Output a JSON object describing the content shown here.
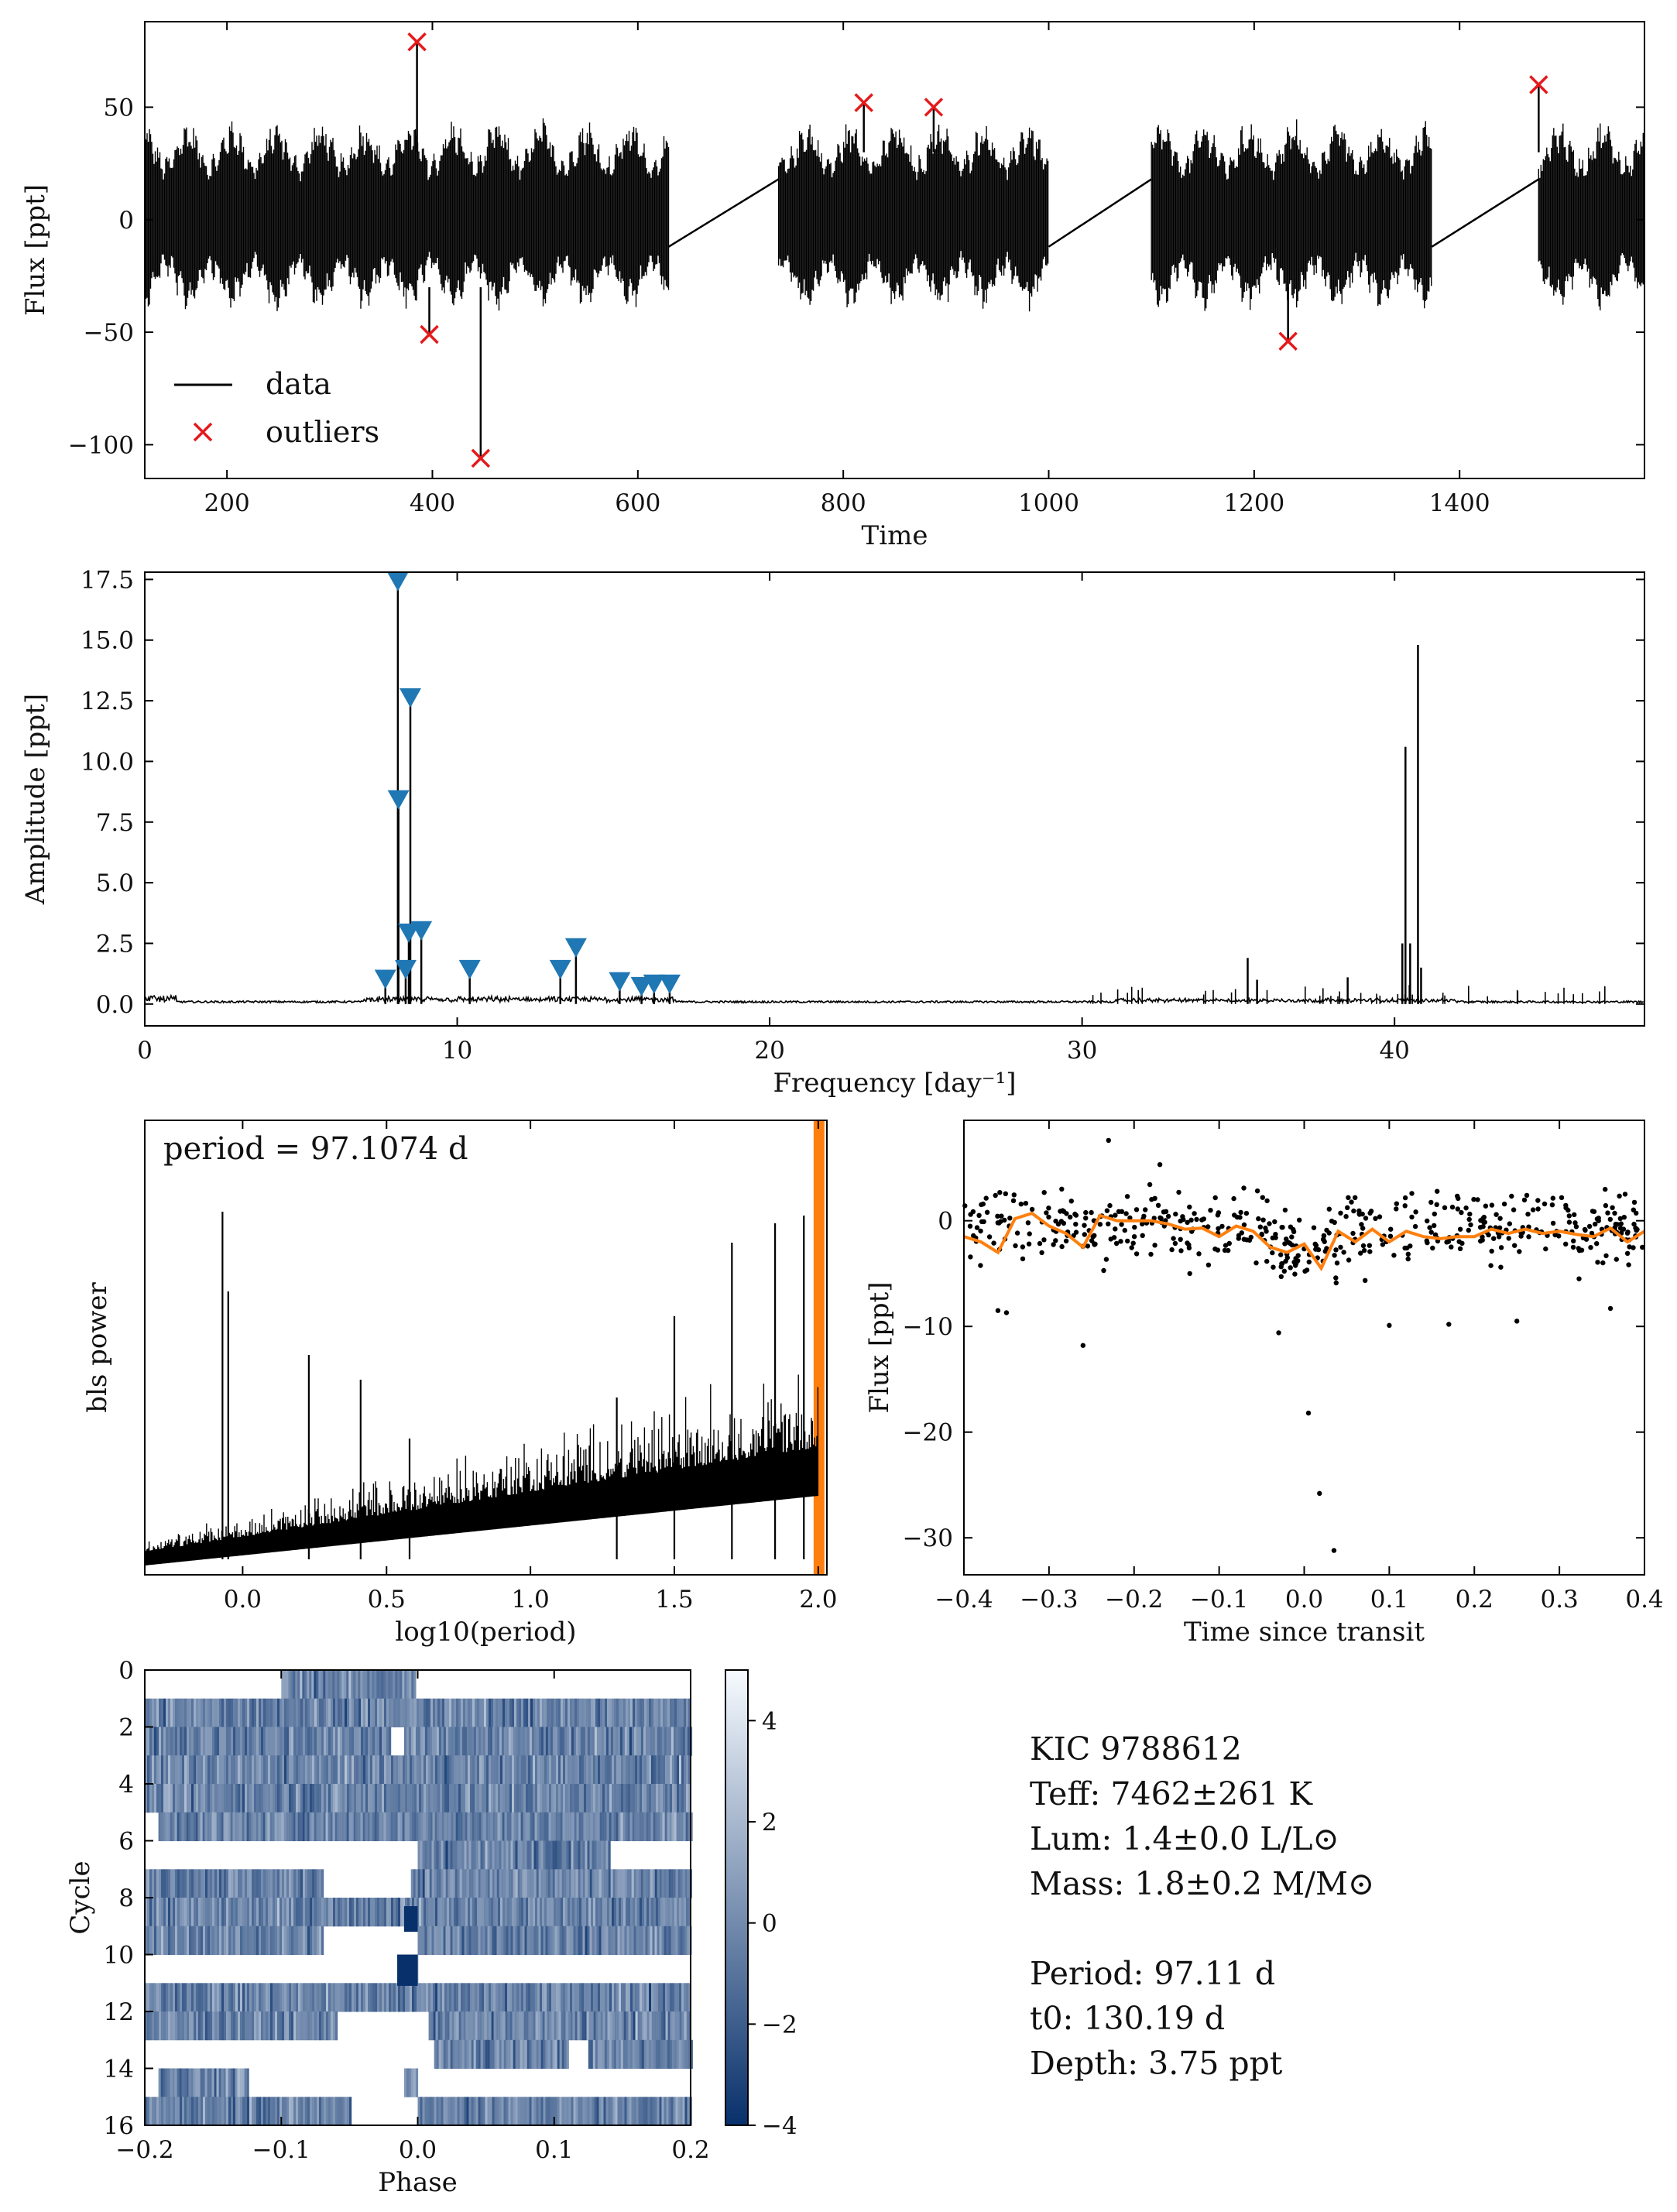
{
  "chart_data": [
    {
      "type": "line",
      "panel": "light-curve",
      "xlabel": "Time",
      "ylabel": "Flux [ppt]",
      "xlim": [
        120,
        1580
      ],
      "ylim": [
        -115,
        88
      ],
      "xticks": [
        200,
        400,
        600,
        800,
        1000,
        1200,
        1400
      ],
      "yticks": [
        -100,
        -50,
        0,
        50
      ],
      "legend": {
        "placement": "lower-left",
        "entries": [
          "data",
          "outliers"
        ]
      },
      "segments": [
        [
          120,
          630
        ],
        [
          737,
          1000
        ],
        [
          1100,
          1373
        ],
        [
          1477,
          1580
        ]
      ],
      "data_envelope": {
        "min": -40,
        "max": 45
      },
      "outliers": [
        {
          "x": 385,
          "y": 79
        },
        {
          "x": 397,
          "y": -51
        },
        {
          "x": 447,
          "y": -106
        },
        {
          "x": 820,
          "y": 52
        },
        {
          "x": 888,
          "y": 50
        },
        {
          "x": 1233,
          "y": -54
        },
        {
          "x": 1477,
          "y": 60
        }
      ],
      "colors": {
        "data": "#000000",
        "outliers": "#e41a1c"
      }
    },
    {
      "type": "line",
      "panel": "amplitude-spectrum",
      "xlabel": "Frequency [day⁻¹]",
      "ylabel": "Amplitude [ppt]",
      "xlim": [
        0,
        48
      ],
      "ylim": [
        -0.9,
        17.8
      ],
      "xticks": [
        0,
        10,
        20,
        30,
        40
      ],
      "yticks": [
        0.0,
        2.5,
        5.0,
        7.5,
        10.0,
        12.5,
        15.0,
        17.5
      ],
      "peaks": [
        {
          "x": 7.7,
          "y": 1.0
        },
        {
          "x": 8.1,
          "y": 17.4
        },
        {
          "x": 8.12,
          "y": 8.4
        },
        {
          "x": 8.35,
          "y": 1.4
        },
        {
          "x": 8.5,
          "y": 12.6
        },
        {
          "x": 8.45,
          "y": 2.9
        },
        {
          "x": 8.85,
          "y": 3.0
        },
        {
          "x": 10.4,
          "y": 1.4
        },
        {
          "x": 13.3,
          "y": 1.4
        },
        {
          "x": 13.8,
          "y": 2.3
        },
        {
          "x": 15.2,
          "y": 0.9
        },
        {
          "x": 15.9,
          "y": 0.7
        },
        {
          "x": 16.3,
          "y": 0.8
        },
        {
          "x": 16.8,
          "y": 0.8
        }
      ],
      "extra_peaks": [
        {
          "x": 35.3,
          "y": 1.9
        },
        {
          "x": 35.6,
          "y": 1.0
        },
        {
          "x": 38.5,
          "y": 1.1
        },
        {
          "x": 40.25,
          "y": 2.5
        },
        {
          "x": 40.35,
          "y": 10.6
        },
        {
          "x": 40.5,
          "y": 2.5
        },
        {
          "x": 40.75,
          "y": 14.8
        },
        {
          "x": 40.85,
          "y": 1.5
        }
      ],
      "markers_color": "#1f77b4"
    },
    {
      "type": "line",
      "panel": "bls-periodogram",
      "xlabel": "log10(period)",
      "ylabel": "bls power",
      "annotation": "period = 97.1074 d",
      "xlim": [
        -0.34,
        2.03
      ],
      "xticks": [
        0.0,
        0.5,
        1.0,
        1.5,
        2.0
      ],
      "highlight_x": 2.0,
      "highlight_color": "#ff7f0e"
    },
    {
      "type": "scatter",
      "panel": "folded-transit",
      "xlabel": "Time since transit",
      "ylabel": "Flux [ppt]",
      "xlim": [
        -0.4,
        0.4
      ],
      "ylim": [
        -33.5,
        9.5
      ],
      "xticks": [
        -0.4,
        -0.3,
        -0.2,
        -0.1,
        0.0,
        0.1,
        0.2,
        0.3,
        0.4
      ],
      "yticks": [
        -30,
        -20,
        -10,
        0
      ],
      "outlier_points": [
        {
          "x": -0.26,
          "y": -11.8
        },
        {
          "x": -0.03,
          "y": -10.6
        },
        {
          "x": 0.005,
          "y": -18.2
        },
        {
          "x": 0.018,
          "y": -25.8
        },
        {
          "x": 0.035,
          "y": -31.2
        },
        {
          "x": -0.23,
          "y": 7.6
        },
        {
          "x": -0.36,
          "y": -8.5
        },
        {
          "x": -0.35,
          "y": -8.7
        },
        {
          "x": 0.25,
          "y": -9.5
        },
        {
          "x": 0.1,
          "y": -9.9
        },
        {
          "x": 0.17,
          "y": -9.8
        },
        {
          "x": 0.36,
          "y": -8.3
        }
      ],
      "binned_curve": [
        [
          -0.4,
          -1.5
        ],
        [
          -0.38,
          -2.0
        ],
        [
          -0.36,
          -3.0
        ],
        [
          -0.34,
          0.2
        ],
        [
          -0.32,
          0.7
        ],
        [
          -0.3,
          -0.5
        ],
        [
          -0.28,
          -1.2
        ],
        [
          -0.26,
          -2.5
        ],
        [
          -0.24,
          0.5
        ],
        [
          -0.22,
          0.0
        ],
        [
          -0.2,
          0.0
        ],
        [
          -0.18,
          0.0
        ],
        [
          -0.16,
          -0.3
        ],
        [
          -0.14,
          -0.8
        ],
        [
          -0.12,
          -0.7
        ],
        [
          -0.1,
          -1.5
        ],
        [
          -0.08,
          -0.5
        ],
        [
          -0.06,
          -1.0
        ],
        [
          -0.04,
          -2.5
        ],
        [
          -0.02,
          -3.0
        ],
        [
          0.0,
          -2.2
        ],
        [
          0.02,
          -4.5
        ],
        [
          0.04,
          -1.0
        ],
        [
          0.06,
          -2.0
        ],
        [
          0.08,
          -0.8
        ],
        [
          0.1,
          -2.0
        ],
        [
          0.12,
          -1.0
        ],
        [
          0.14,
          -1.5
        ],
        [
          0.16,
          -1.7
        ],
        [
          0.18,
          -1.5
        ],
        [
          0.2,
          -1.5
        ],
        [
          0.22,
          -0.8
        ],
        [
          0.24,
          -1.2
        ],
        [
          0.26,
          -0.8
        ],
        [
          0.28,
          -1.2
        ],
        [
          0.3,
          -1.0
        ],
        [
          0.32,
          -1.3
        ],
        [
          0.34,
          -1.5
        ],
        [
          0.36,
          -0.7
        ],
        [
          0.38,
          -2.0
        ],
        [
          0.4,
          -1.0
        ]
      ],
      "curve_color": "#ff7f0e"
    },
    {
      "type": "heatmap",
      "panel": "river-plot",
      "xlabel": "Phase",
      "ylabel": "Cycle",
      "xlim": [
        -0.2,
        0.2
      ],
      "ylim": [
        16,
        0
      ],
      "xticks": [
        -0.2,
        -0.1,
        0.0,
        0.1,
        0.2
      ],
      "yticks": [
        0,
        2,
        4,
        6,
        8,
        10,
        12,
        14,
        16
      ],
      "colorbar": {
        "range": [
          -4,
          5
        ],
        "ticks": [
          -4,
          -2,
          0,
          2,
          4
        ]
      },
      "rows": [
        {
          "cycle": 0,
          "spans": [
            [
              -0.1,
              -0.002
            ]
          ]
        },
        {
          "cycle": 1,
          "spans": [
            [
              -0.2,
              0.2
            ]
          ]
        },
        {
          "cycle": 2,
          "spans": [
            [
              -0.2,
              -0.02
            ],
            [
              -0.01,
              0.2
            ]
          ]
        },
        {
          "cycle": 3,
          "spans": [
            [
              -0.2,
              0.2
            ]
          ]
        },
        {
          "cycle": 4,
          "spans": [
            [
              -0.2,
              0.2
            ]
          ]
        },
        {
          "cycle": 5,
          "spans": [
            [
              -0.19,
              0.2
            ]
          ]
        },
        {
          "cycle": 6,
          "spans": [
            [
              0.0,
              0.14
            ]
          ]
        },
        {
          "cycle": 7,
          "spans": [
            [
              -0.2,
              -0.07
            ],
            [
              -0.005,
              0.2
            ]
          ]
        },
        {
          "cycle": 8,
          "spans": [
            [
              -0.2,
              0.2
            ]
          ]
        },
        {
          "cycle": 9,
          "spans": [
            [
              -0.2,
              -0.07
            ],
            [
              0.0,
              0.2
            ]
          ]
        },
        {
          "cycle": 10,
          "spans": [
            [
              -0.015,
              0.0
            ]
          ]
        },
        {
          "cycle": 11,
          "spans": [
            [
              -0.2,
              0.2
            ]
          ]
        },
        {
          "cycle": 12,
          "spans": [
            [
              -0.2,
              -0.06
            ],
            [
              0.008,
              0.2
            ]
          ]
        },
        {
          "cycle": 13,
          "spans": [
            [
              0.012,
              0.11
            ],
            [
              0.125,
              0.2
            ]
          ]
        },
        {
          "cycle": 14,
          "spans": [
            [
              -0.19,
              -0.125
            ],
            [
              -0.01,
              0.0
            ]
          ]
        },
        {
          "cycle": 15,
          "spans": [
            [
              -0.2,
              -0.05
            ],
            [
              0.0,
              0.2
            ]
          ]
        }
      ]
    }
  ],
  "stellar_info": {
    "star_id": "KIC 9788612",
    "teff": "Teff: 7462±261 K",
    "lum": "Lum: 1.4±0.0 L/L⊙",
    "mass": "Mass: 1.8±0.2 M/M⊙",
    "period": "Period: 97.11 d",
    "t0": "t0: 130.19 d",
    "depth": "Depth: 3.75 ppt"
  }
}
